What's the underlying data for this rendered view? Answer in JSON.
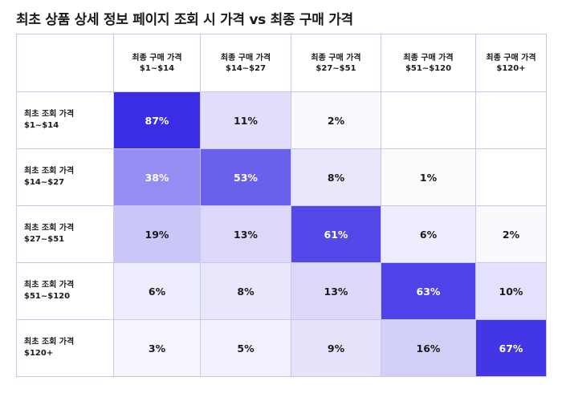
{
  "chart_data": {
    "type": "heatmap",
    "title": "최초 상품 상세 정보 페이지 조회 시 가격 vs 최종 구매 가격",
    "columns": [
      {
        "line1": "최종 구매 가격",
        "line2": "$1~$14"
      },
      {
        "line1": "최종 구매 가격",
        "line2": "$14~$27"
      },
      {
        "line1": "최종 구매 가격",
        "line2": "$27~$51"
      },
      {
        "line1": "최종 구매 가격",
        "line2": "$51~$120"
      },
      {
        "line1": "최종 구매 가격",
        "line2": "$120+"
      }
    ],
    "rows": [
      {
        "line1": "최초 조회 가격",
        "line2": "$1~$14"
      },
      {
        "line1": "최초 조회 가격",
        "line2": "$14~$27"
      },
      {
        "line1": "최초 조회 가격",
        "line2": "$27~$51"
      },
      {
        "line1": "최초 조회 가격",
        "line2": "$51~$120"
      },
      {
        "line1": "최초 조회 가격",
        "line2": "$120+"
      }
    ],
    "values": [
      [
        87,
        11,
        2,
        null,
        null
      ],
      [
        38,
        53,
        8,
        1,
        null
      ],
      [
        19,
        13,
        61,
        6,
        2
      ],
      [
        6,
        8,
        13,
        63,
        10
      ],
      [
        3,
        5,
        9,
        16,
        67
      ]
    ],
    "value_suffix": "%",
    "colors": {
      "high": "#3b2de6",
      "low": "#ffffff",
      "text_dark": "#1a1a1a",
      "text_light": "#ffffff",
      "grid": "#c9c6ec"
    }
  }
}
